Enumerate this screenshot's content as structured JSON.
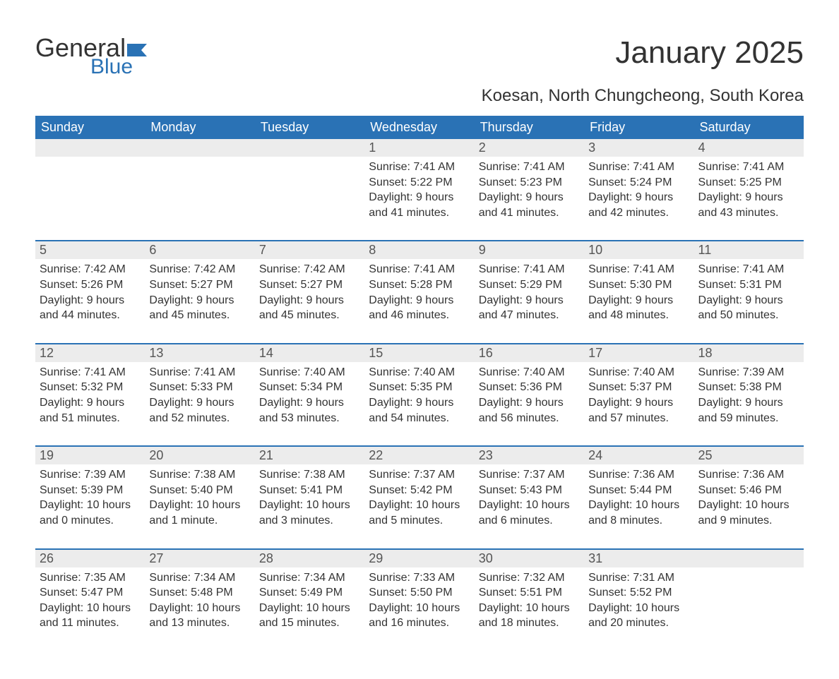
{
  "brand": {
    "word1": "General",
    "word2": "Blue"
  },
  "title": "January 2025",
  "subtitle": "Koesan, North Chungcheong, South Korea",
  "colors": {
    "header_bg": "#2a72b5",
    "header_text": "#ffffff",
    "num_row_bg": "#ececec",
    "num_text": "#555555",
    "body_text": "#333333",
    "page_bg": "#ffffff",
    "rule": "#2a72b5",
    "logo_accent": "#2a72b5"
  },
  "typography": {
    "title_fontsize": 44,
    "subtitle_fontsize": 24,
    "header_fontsize": 18,
    "daynum_fontsize": 18,
    "body_fontsize": 16,
    "font_family": "Arial"
  },
  "day_headers": [
    "Sunday",
    "Monday",
    "Tuesday",
    "Wednesday",
    "Thursday",
    "Friday",
    "Saturday"
  ],
  "weeks": [
    [
      {
        "num": "",
        "sunrise": "",
        "sunset": "",
        "daylight": ""
      },
      {
        "num": "",
        "sunrise": "",
        "sunset": "",
        "daylight": ""
      },
      {
        "num": "",
        "sunrise": "",
        "sunset": "",
        "daylight": ""
      },
      {
        "num": "1",
        "sunrise": "Sunrise: 7:41 AM",
        "sunset": "Sunset: 5:22 PM",
        "daylight": "Daylight: 9 hours and 41 minutes."
      },
      {
        "num": "2",
        "sunrise": "Sunrise: 7:41 AM",
        "sunset": "Sunset: 5:23 PM",
        "daylight": "Daylight: 9 hours and 41 minutes."
      },
      {
        "num": "3",
        "sunrise": "Sunrise: 7:41 AM",
        "sunset": "Sunset: 5:24 PM",
        "daylight": "Daylight: 9 hours and 42 minutes."
      },
      {
        "num": "4",
        "sunrise": "Sunrise: 7:41 AM",
        "sunset": "Sunset: 5:25 PM",
        "daylight": "Daylight: 9 hours and 43 minutes."
      }
    ],
    [
      {
        "num": "5",
        "sunrise": "Sunrise: 7:42 AM",
        "sunset": "Sunset: 5:26 PM",
        "daylight": "Daylight: 9 hours and 44 minutes."
      },
      {
        "num": "6",
        "sunrise": "Sunrise: 7:42 AM",
        "sunset": "Sunset: 5:27 PM",
        "daylight": "Daylight: 9 hours and 45 minutes."
      },
      {
        "num": "7",
        "sunrise": "Sunrise: 7:42 AM",
        "sunset": "Sunset: 5:27 PM",
        "daylight": "Daylight: 9 hours and 45 minutes."
      },
      {
        "num": "8",
        "sunrise": "Sunrise: 7:41 AM",
        "sunset": "Sunset: 5:28 PM",
        "daylight": "Daylight: 9 hours and 46 minutes."
      },
      {
        "num": "9",
        "sunrise": "Sunrise: 7:41 AM",
        "sunset": "Sunset: 5:29 PM",
        "daylight": "Daylight: 9 hours and 47 minutes."
      },
      {
        "num": "10",
        "sunrise": "Sunrise: 7:41 AM",
        "sunset": "Sunset: 5:30 PM",
        "daylight": "Daylight: 9 hours and 48 minutes."
      },
      {
        "num": "11",
        "sunrise": "Sunrise: 7:41 AM",
        "sunset": "Sunset: 5:31 PM",
        "daylight": "Daylight: 9 hours and 50 minutes."
      }
    ],
    [
      {
        "num": "12",
        "sunrise": "Sunrise: 7:41 AM",
        "sunset": "Sunset: 5:32 PM",
        "daylight": "Daylight: 9 hours and 51 minutes."
      },
      {
        "num": "13",
        "sunrise": "Sunrise: 7:41 AM",
        "sunset": "Sunset: 5:33 PM",
        "daylight": "Daylight: 9 hours and 52 minutes."
      },
      {
        "num": "14",
        "sunrise": "Sunrise: 7:40 AM",
        "sunset": "Sunset: 5:34 PM",
        "daylight": "Daylight: 9 hours and 53 minutes."
      },
      {
        "num": "15",
        "sunrise": "Sunrise: 7:40 AM",
        "sunset": "Sunset: 5:35 PM",
        "daylight": "Daylight: 9 hours and 54 minutes."
      },
      {
        "num": "16",
        "sunrise": "Sunrise: 7:40 AM",
        "sunset": "Sunset: 5:36 PM",
        "daylight": "Daylight: 9 hours and 56 minutes."
      },
      {
        "num": "17",
        "sunrise": "Sunrise: 7:40 AM",
        "sunset": "Sunset: 5:37 PM",
        "daylight": "Daylight: 9 hours and 57 minutes."
      },
      {
        "num": "18",
        "sunrise": "Sunrise: 7:39 AM",
        "sunset": "Sunset: 5:38 PM",
        "daylight": "Daylight: 9 hours and 59 minutes."
      }
    ],
    [
      {
        "num": "19",
        "sunrise": "Sunrise: 7:39 AM",
        "sunset": "Sunset: 5:39 PM",
        "daylight": "Daylight: 10 hours and 0 minutes."
      },
      {
        "num": "20",
        "sunrise": "Sunrise: 7:38 AM",
        "sunset": "Sunset: 5:40 PM",
        "daylight": "Daylight: 10 hours and 1 minute."
      },
      {
        "num": "21",
        "sunrise": "Sunrise: 7:38 AM",
        "sunset": "Sunset: 5:41 PM",
        "daylight": "Daylight: 10 hours and 3 minutes."
      },
      {
        "num": "22",
        "sunrise": "Sunrise: 7:37 AM",
        "sunset": "Sunset: 5:42 PM",
        "daylight": "Daylight: 10 hours and 5 minutes."
      },
      {
        "num": "23",
        "sunrise": "Sunrise: 7:37 AM",
        "sunset": "Sunset: 5:43 PM",
        "daylight": "Daylight: 10 hours and 6 minutes."
      },
      {
        "num": "24",
        "sunrise": "Sunrise: 7:36 AM",
        "sunset": "Sunset: 5:44 PM",
        "daylight": "Daylight: 10 hours and 8 minutes."
      },
      {
        "num": "25",
        "sunrise": "Sunrise: 7:36 AM",
        "sunset": "Sunset: 5:46 PM",
        "daylight": "Daylight: 10 hours and 9 minutes."
      }
    ],
    [
      {
        "num": "26",
        "sunrise": "Sunrise: 7:35 AM",
        "sunset": "Sunset: 5:47 PM",
        "daylight": "Daylight: 10 hours and 11 minutes."
      },
      {
        "num": "27",
        "sunrise": "Sunrise: 7:34 AM",
        "sunset": "Sunset: 5:48 PM",
        "daylight": "Daylight: 10 hours and 13 minutes."
      },
      {
        "num": "28",
        "sunrise": "Sunrise: 7:34 AM",
        "sunset": "Sunset: 5:49 PM",
        "daylight": "Daylight: 10 hours and 15 minutes."
      },
      {
        "num": "29",
        "sunrise": "Sunrise: 7:33 AM",
        "sunset": "Sunset: 5:50 PM",
        "daylight": "Daylight: 10 hours and 16 minutes."
      },
      {
        "num": "30",
        "sunrise": "Sunrise: 7:32 AM",
        "sunset": "Sunset: 5:51 PM",
        "daylight": "Daylight: 10 hours and 18 minutes."
      },
      {
        "num": "31",
        "sunrise": "Sunrise: 7:31 AM",
        "sunset": "Sunset: 5:52 PM",
        "daylight": "Daylight: 10 hours and 20 minutes."
      },
      {
        "num": "",
        "sunrise": "",
        "sunset": "",
        "daylight": ""
      }
    ]
  ]
}
